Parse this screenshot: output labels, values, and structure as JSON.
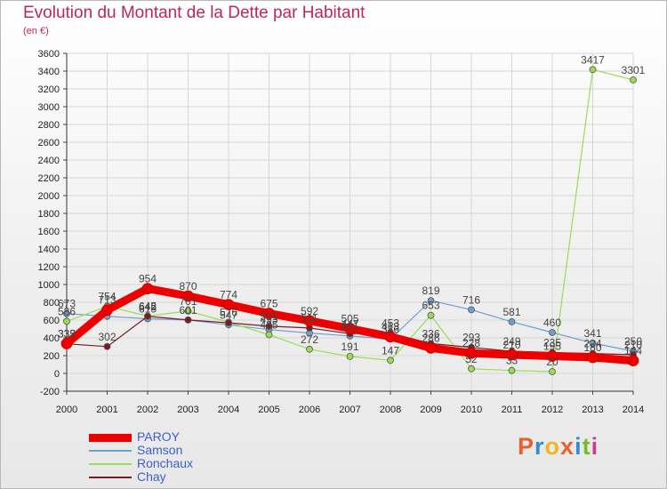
{
  "header": {
    "title": "Evolution du Montant de la Dette par Habitant",
    "unit": "(en €)"
  },
  "logo": {
    "text": "Proxiti",
    "colors": [
      "#e8602c",
      "#2a8fd8",
      "#f2b51d",
      "#e8602c",
      "#2a8fd8",
      "#7ab929",
      "#d43a8a"
    ]
  },
  "chart_data": {
    "type": "line",
    "title": "Evolution du Montant de la Dette par Habitant",
    "subtitle": "(en €)",
    "x": [
      "2000",
      "2001",
      "2002",
      "2003",
      "2004",
      "2005",
      "2006",
      "2007",
      "2008",
      "2009",
      "2010",
      "2011",
      "2012",
      "2013",
      "2014"
    ],
    "ylim": [
      -200,
      3600
    ],
    "yticks": [
      -200,
      0,
      200,
      400,
      600,
      800,
      1000,
      1200,
      1400,
      1600,
      1800,
      2000,
      2200,
      2400,
      2600,
      2800,
      3000,
      3200,
      3400,
      3600
    ],
    "grid": true,
    "legend": "bottom-left",
    "series": [
      {
        "name": "PAROY",
        "color": "#ee0000",
        "width": 9,
        "values": [
          335,
          713,
          954,
          870,
          774,
          675,
          592,
          505,
          413,
          286,
          228,
          210,
          195,
          180,
          144
        ]
      },
      {
        "name": "Samson",
        "color": "#6f9fcf",
        "width": 1,
        "values": [
          673,
          642,
          615,
          601,
          547,
          493,
          454,
          421,
          386,
          819,
          716,
          581,
          460,
          341,
          250
        ]
      },
      {
        "name": "Ronchaux",
        "color": "#99dd55",
        "width": 1,
        "values": [
          586,
          754,
          645,
          701,
          576,
          435,
          272,
          191,
          147,
          653,
          52,
          33,
          20,
          3417,
          3301
        ]
      },
      {
        "name": "Chay",
        "color": "#7a1a22",
        "width": 1,
        "values": [
          333,
          302,
          642,
          601,
          569,
          531,
          511,
          447,
          453,
          336,
          293,
          249,
          235,
          224,
          210
        ]
      }
    ],
    "value_labels": [
      {
        "x": "2000",
        "text": "673"
      },
      {
        "x": "2000",
        "text": "586"
      },
      {
        "x": "2000",
        "text": "335"
      },
      {
        "x": "2000",
        "text": "333"
      },
      {
        "x": "2001",
        "text": "754"
      },
      {
        "x": "2001",
        "text": "713"
      },
      {
        "x": "2001",
        "text": "302"
      },
      {
        "x": "2002",
        "text": "954"
      },
      {
        "x": "2002",
        "text": "645"
      },
      {
        "x": "2002",
        "text": "642"
      },
      {
        "x": "2002",
        "text": "615"
      },
      {
        "x": "2003",
        "text": "870"
      },
      {
        "x": "2003",
        "text": "701"
      },
      {
        "x": "2003",
        "text": "601"
      },
      {
        "x": "2004",
        "text": "774"
      },
      {
        "x": "2004",
        "text": "576"
      },
      {
        "x": "2004",
        "text": "547"
      },
      {
        "x": "2005",
        "text": "675"
      },
      {
        "x": "2005",
        "text": "531"
      },
      {
        "x": "2005",
        "text": "493"
      },
      {
        "x": "2005",
        "text": "435"
      },
      {
        "x": "2006",
        "text": "592"
      },
      {
        "x": "2006",
        "text": "511"
      },
      {
        "x": "2006",
        "text": "272"
      },
      {
        "x": "2007",
        "text": "505"
      },
      {
        "x": "2007",
        "text": "447"
      },
      {
        "x": "2007",
        "text": "421"
      },
      {
        "x": "2007",
        "text": "191"
      },
      {
        "x": "2008",
        "text": "453"
      },
      {
        "x": "2008",
        "text": "413"
      },
      {
        "x": "2008",
        "text": "386"
      },
      {
        "x": "2008",
        "text": "147"
      },
      {
        "x": "2009",
        "text": "819"
      },
      {
        "x": "2009",
        "text": "653"
      },
      {
        "x": "2009",
        "text": "336"
      },
      {
        "x": "2009",
        "text": "286"
      },
      {
        "x": "2010",
        "text": "716"
      },
      {
        "x": "2010",
        "text": "293"
      },
      {
        "x": "2010",
        "text": "228"
      },
      {
        "x": "2010",
        "text": "52"
      },
      {
        "x": "2011",
        "text": "581"
      },
      {
        "x": "2011",
        "text": "249"
      },
      {
        "x": "2011",
        "text": "210"
      },
      {
        "x": "2011",
        "text": "33"
      },
      {
        "x": "2012",
        "text": "460"
      },
      {
        "x": "2012",
        "text": "235"
      },
      {
        "x": "2012",
        "text": "195"
      },
      {
        "x": "2012",
        "text": "20"
      },
      {
        "x": "2013",
        "text": "3417"
      },
      {
        "x": "2013",
        "text": "341"
      },
      {
        "x": "2013",
        "text": "224"
      },
      {
        "x": "2013",
        "text": "180"
      },
      {
        "x": "2014",
        "text": "3301"
      },
      {
        "x": "2014",
        "text": "250"
      },
      {
        "x": "2014",
        "text": "210"
      },
      {
        "x": "2014",
        "text": "144"
      }
    ]
  }
}
